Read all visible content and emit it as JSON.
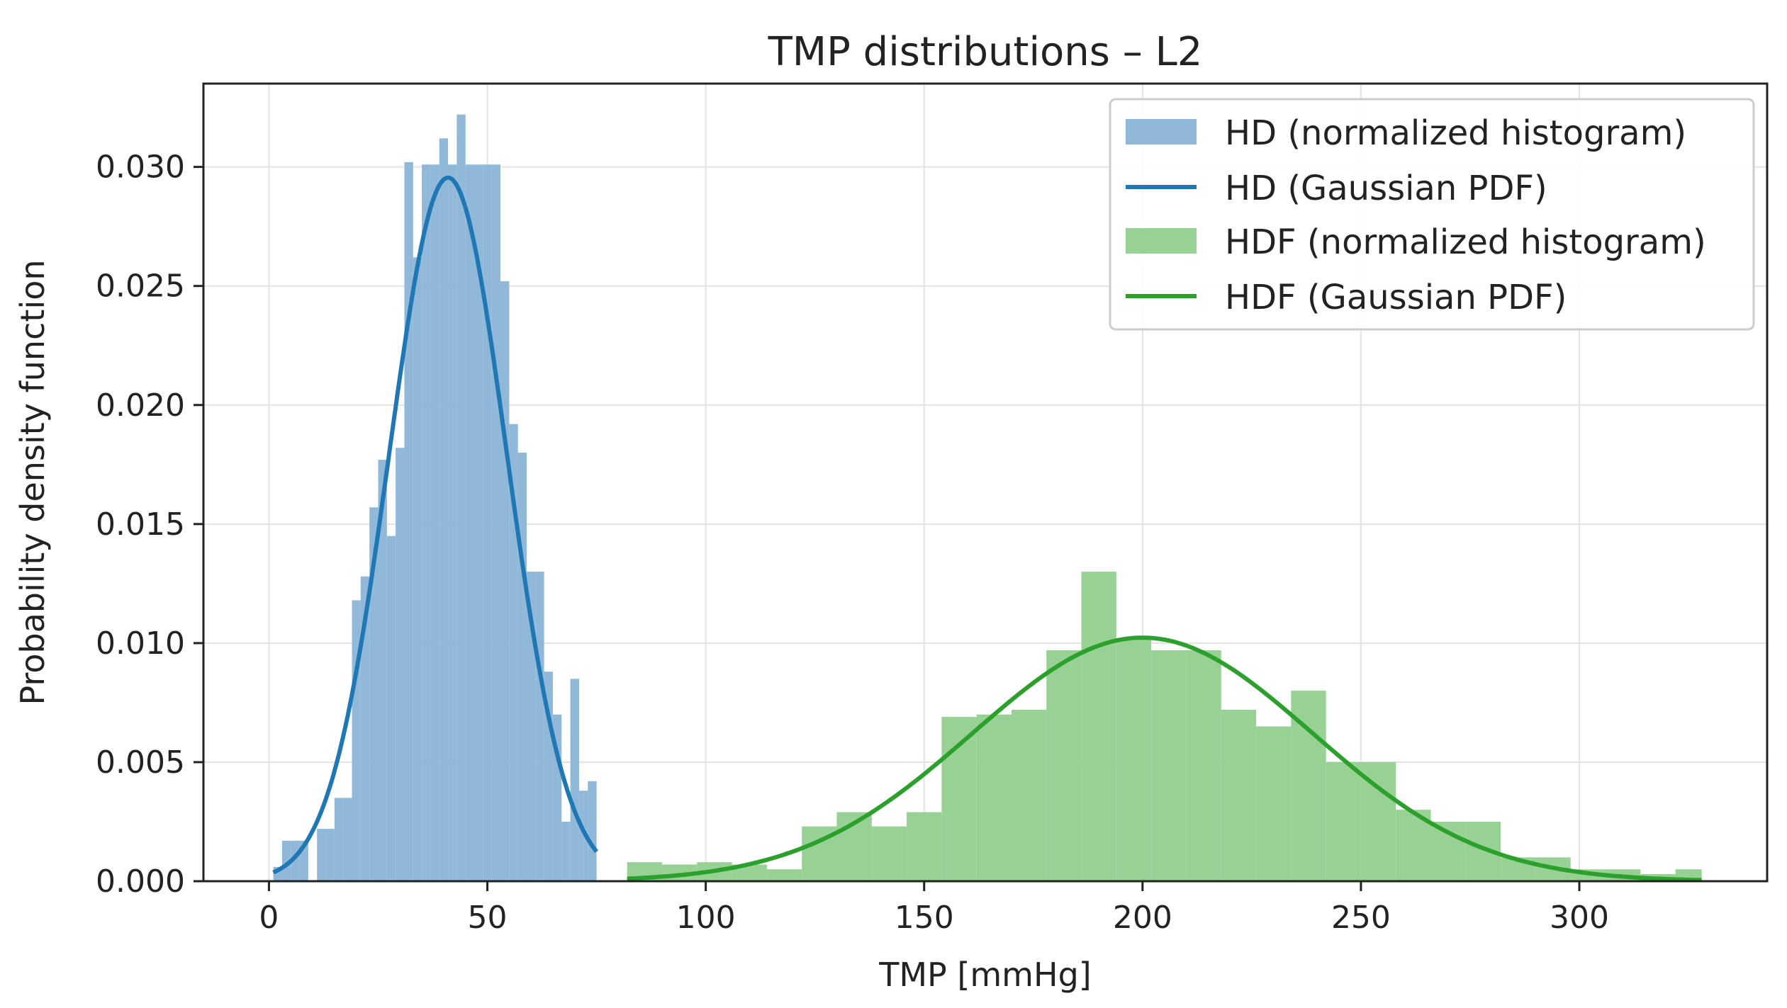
{
  "chart_data": {
    "type": "histogram",
    "title": "TMP distributions – L2",
    "xlabel": "TMP [mmHg]",
    "ylabel": "Probability density function",
    "xlim": [
      -15,
      343
    ],
    "ylim": [
      0,
      0.0335
    ],
    "xticks": [
      0,
      50,
      100,
      150,
      200,
      250,
      300
    ],
    "yticks": [
      0.0,
      0.005,
      0.01,
      0.015,
      0.02,
      0.025,
      0.03
    ],
    "ytick_labels": [
      "0.000",
      "0.005",
      "0.010",
      "0.015",
      "0.020",
      "0.025",
      "0.030"
    ],
    "grid": true,
    "legend_position": "top-right",
    "colors": {
      "hd_hist": "#8fb8d9",
      "hd_line": "#1f77b4",
      "hdf_hist": "#98d194",
      "hdf_line": "#2ca02c"
    },
    "legend": [
      "HD (normalized histogram)",
      "HD (Gaussian PDF)",
      "HDF (normalized histogram)",
      "HDF (Gaussian PDF)"
    ],
    "series": [
      {
        "name": "HD (normalized histogram)",
        "kind": "histogram",
        "bin_edges": [
          1,
          3,
          5,
          7,
          9,
          11,
          13,
          15,
          17,
          19,
          21,
          23,
          25,
          27,
          29,
          31,
          33,
          35,
          37,
          39,
          41,
          43,
          45,
          47,
          49,
          51,
          53,
          55,
          57,
          59,
          61,
          63,
          65,
          67,
          69,
          71,
          73,
          75
        ],
        "values": [
          0.0006,
          0.0017,
          0.0017,
          0.0017,
          0.0,
          0.0022,
          0.0022,
          0.0035,
          0.0035,
          0.0118,
          0.0128,
          0.0157,
          0.0177,
          0.0145,
          0.0182,
          0.0302,
          0.0262,
          0.0301,
          0.0301,
          0.0312,
          0.0301,
          0.0322,
          0.0301,
          0.0301,
          0.0301,
          0.0301,
          0.0252,
          0.0192,
          0.018,
          0.013,
          0.013,
          0.0088,
          0.007,
          0.0025,
          0.0085,
          0.0038,
          0.0042
        ]
      },
      {
        "name": "HD (Gaussian PDF)",
        "kind": "gaussian",
        "mean": 41,
        "std": 13.5,
        "x_range": [
          1,
          75
        ]
      },
      {
        "name": "HDF (normalized histogram)",
        "kind": "histogram",
        "bin_edges": [
          82,
          90,
          98,
          106,
          114,
          122,
          130,
          138,
          146,
          154,
          162,
          170,
          178,
          186,
          194,
          202,
          210,
          218,
          226,
          234,
          242,
          250,
          258,
          266,
          274,
          282,
          290,
          298,
          306,
          314,
          322,
          328
        ],
        "values": [
          0.0008,
          0.0007,
          0.0008,
          0.0007,
          0.0005,
          0.0023,
          0.0029,
          0.0023,
          0.0029,
          0.0069,
          0.007,
          0.0072,
          0.0097,
          0.013,
          0.0102,
          0.0097,
          0.0097,
          0.0072,
          0.0065,
          0.008,
          0.005,
          0.005,
          0.003,
          0.0025,
          0.0025,
          0.001,
          0.001,
          0.0005,
          0.0005,
          0.0003,
          0.0005
        ]
      },
      {
        "name": "HDF (Gaussian PDF)",
        "kind": "gaussian",
        "mean": 200,
        "std": 39,
        "x_range": [
          82,
          328
        ]
      }
    ]
  }
}
